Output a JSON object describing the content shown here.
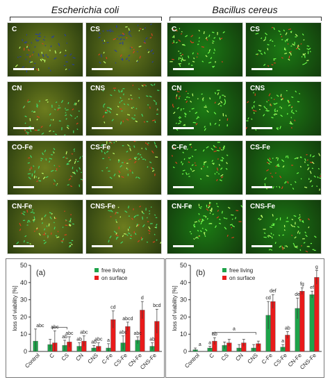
{
  "headers": {
    "left": "Escherichia coli",
    "right": "Bacillus cereus"
  },
  "colors": {
    "free": "#1ea34a",
    "surface": "#e81b1b",
    "ecoli_bg": "#6d7d1e",
    "bacillus_bg": "#1c7a14"
  },
  "panels_ecoli": [
    "C",
    "CS",
    "CN",
    "CNS",
    "CO-Fe",
    "CS-Fe",
    "CN-Fe",
    "CNS-Fe"
  ],
  "panels_bacillus": [
    "C",
    "CS",
    "CN",
    "CNS",
    "C-Fe",
    "CS-Fe",
    "CN-Fe",
    "CNS-Fe"
  ],
  "chart_data": [
    {
      "type": "bar",
      "panel_label": "(a)",
      "categories": [
        "Control",
        "C",
        "CS",
        "CN",
        "CNS",
        "C-Fe",
        "CS-Fe",
        "CN-Fe",
        "CNS-Fe"
      ],
      "series": [
        {
          "name": "free living",
          "values": [
            6,
            4,
            3.5,
            3,
            2,
            2,
            5,
            6.5,
            3
          ],
          "errors": [
            7,
            3,
            3,
            2,
            1.5,
            2.5,
            4,
            2,
            2
          ]
        },
        {
          "name": "on surface",
          "values": [
            0,
            5,
            5.5,
            6,
            3,
            18.5,
            14.5,
            24,
            17.5
          ],
          "errors": [
            0,
            7,
            3,
            3,
            2,
            5,
            2.5,
            5,
            7
          ]
        }
      ],
      "letters": [
        "abc",
        "abc",
        "abc",
        "abc",
        "abc",
        "cd",
        "abcd",
        "d",
        "bcd"
      ],
      "letters_low": [
        "",
        "",
        "ab",
        "ab",
        "ab",
        "a",
        "abc",
        "abc",
        "ab"
      ],
      "ylabel": "loss of viability [%]",
      "ylim": [
        0,
        50
      ],
      "yticks": [
        "0",
        "10",
        "20",
        "30",
        "40",
        "50"
      ],
      "legend_position": "top-right"
    },
    {
      "type": "bar",
      "panel_label": "(b)",
      "categories": [
        "Control",
        "C",
        "CS",
        "CN",
        "CNS",
        "C-Fe",
        "CS-Fe",
        "CN-Fe",
        "CNS-Fe"
      ],
      "series": [
        {
          "name": "free living",
          "values": [
            1,
            2,
            3.5,
            2,
            2,
            21,
            2.5,
            25,
            33
          ],
          "errors": [
            1,
            1,
            2,
            2,
            2,
            8,
            1.5,
            6,
            2
          ]
        },
        {
          "name": "on surface",
          "values": [
            0,
            6,
            5,
            5,
            4.5,
            29,
            9.5,
            35,
            43
          ],
          "errors": [
            0,
            2,
            2,
            2,
            1.5,
            4,
            2,
            2,
            4
          ]
        }
      ],
      "letters": [
        "a",
        "ab",
        "",
        "",
        "",
        "def",
        "ab",
        "fg",
        "g"
      ],
      "letters_low": [
        "",
        "a",
        "",
        "",
        "",
        "cd",
        "a",
        "de",
        "ef"
      ],
      "bracket_label": "a",
      "ylabel": "loss of viability [%]",
      "ylim": [
        0,
        50
      ],
      "yticks": [
        "0",
        "10",
        "20",
        "30",
        "40",
        "50"
      ],
      "legend_position": "top-left"
    }
  ]
}
